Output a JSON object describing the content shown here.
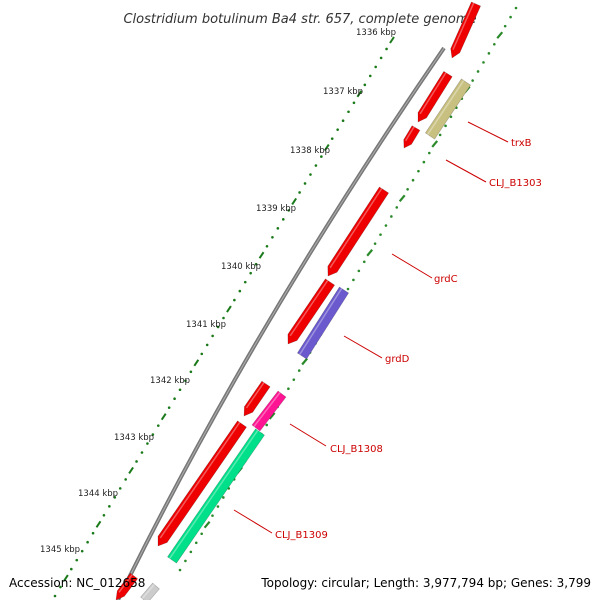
{
  "title": "Clostridium botulinum Ba4 str. 657, complete genome",
  "footer": {
    "accession": "Accession: NC_012658",
    "topology": "Topology: circular; Length: 3,977,794 bp; Genes: 3,799"
  },
  "kbp_labels": [
    "1336 kbp",
    "1337 kbp",
    "1338 kbp",
    "1339 kbp",
    "1340 kbp",
    "1341 kbp",
    "1342 kbp",
    "1343 kbp",
    "1344 kbp",
    "1345 kbp"
  ],
  "gene_labels": [
    "trxB",
    "CLJ_B1303",
    "grdC",
    "grdD",
    "CLJ_B1308",
    "CLJ_B1309"
  ],
  "colors": {
    "backbone": "#7a7a7a",
    "forward_gene": "#ee0000",
    "trxB": "#c8c080",
    "grdD": "#6a5acd",
    "CLJ_B1308": "#ff1493",
    "CLJ_B1309": "#00e08a",
    "tick_outer": "#1a7a1a",
    "tick_inner": "#2a8a2a",
    "label_line": "#cc0000",
    "faded_gene": "#cccccc"
  }
}
